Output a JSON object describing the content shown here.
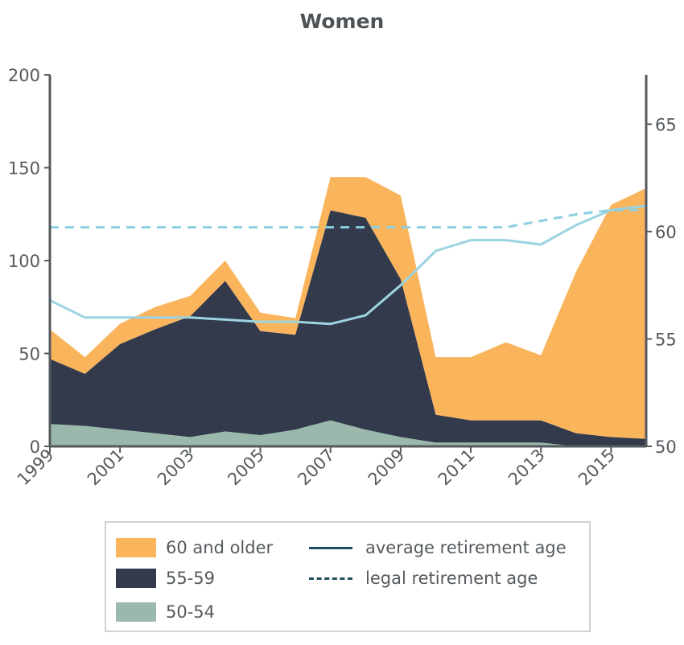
{
  "title": "Women",
  "colors": {
    "older60": "#f9b45c",
    "age55_59": "#323a4b",
    "age50_54": "#9ab8ab",
    "average_line": "#9bd4e0",
    "legal_line": "#8ccfe0",
    "legend_line": "#1f4e5f",
    "axis": "#555a5e"
  },
  "legend": {
    "older60": "60 and older",
    "age55_59": "55-59",
    "age50_54": "50-54",
    "average": "average retirement age",
    "legal": "legal retirement age"
  },
  "chart_data": {
    "type": "area",
    "title": "Women",
    "x": [
      1999,
      2000,
      2001,
      2002,
      2003,
      2004,
      2005,
      2006,
      2007,
      2008,
      2009,
      2010,
      2011,
      2012,
      2013,
      2014,
      2015,
      2016
    ],
    "xticks": [
      "1999",
      "2001",
      "2003",
      "2005",
      "2007",
      "2009",
      "2011",
      "2013",
      "2015"
    ],
    "ylim": [
      0,
      200
    ],
    "yticks": [
      "0",
      "50",
      "100",
      "150",
      "200"
    ],
    "y2lim": [
      50,
      67.3
    ],
    "y2ticks": [
      "50",
      "55",
      "60",
      "65"
    ],
    "stacked": true,
    "series": [
      {
        "name": "50-54",
        "axis": "left",
        "type": "area",
        "values": [
          12,
          11,
          9,
          7,
          5,
          8,
          6,
          9,
          14,
          9,
          5,
          2,
          2,
          2,
          2,
          0,
          0,
          0
        ]
      },
      {
        "name": "55-59",
        "axis": "left",
        "type": "area",
        "values": [
          35,
          28,
          46,
          56,
          65,
          81,
          56,
          51,
          113,
          114,
          85,
          15,
          12,
          12,
          12,
          7,
          5,
          4
        ]
      },
      {
        "name": "60 and older",
        "axis": "left",
        "type": "area",
        "values": [
          16,
          9,
          11,
          12,
          11,
          11,
          10,
          9,
          18,
          22,
          45,
          31,
          34,
          42,
          35,
          87,
          125,
          135
        ]
      },
      {
        "name": "average retirement age",
        "axis": "right",
        "type": "line",
        "values": [
          56.8,
          56.0,
          56.0,
          56.0,
          56.0,
          55.9,
          55.8,
          55.8,
          55.7,
          56.1,
          57.5,
          59.1,
          59.6,
          59.6,
          59.4,
          60.3,
          61.0,
          61.2
        ]
      },
      {
        "name": "legal retirement age",
        "axis": "right",
        "type": "line",
        "dashed": true,
        "values": [
          60.2,
          60.2,
          60.2,
          60.2,
          60.2,
          60.2,
          60.2,
          60.2,
          60.2,
          60.2,
          60.2,
          60.2,
          60.2,
          60.2,
          60.5,
          60.8,
          61.0,
          61.0
        ]
      }
    ]
  }
}
